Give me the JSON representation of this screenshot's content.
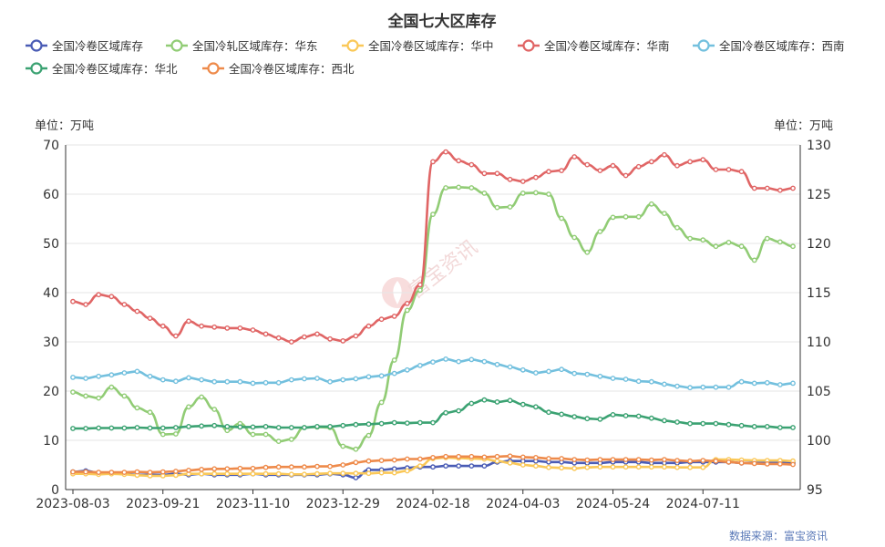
{
  "chart_data": {
    "type": "line",
    "title": "全国七大区库存",
    "y_left": {
      "unit_label": "单位：万吨",
      "range": [
        0,
        70
      ],
      "ticks": [
        "0",
        "10",
        "20",
        "30",
        "40",
        "50",
        "60",
        "70"
      ]
    },
    "y_right": {
      "unit_label": "单位：万吨",
      "range": [
        95,
        130
      ],
      "ticks": [
        "95",
        "100",
        "105",
        "110",
        "115",
        "120",
        "125",
        "130"
      ]
    },
    "x_tick_labels": [
      "2023-08-03",
      "2023-09-21",
      "2023-11-10",
      "2023-12-29",
      "2024-02-18",
      "2024-04-03",
      "2024-05-24",
      "2024-07-11"
    ],
    "x_tick_index": [
      0,
      7,
      14,
      21,
      28,
      35,
      42,
      49
    ],
    "point_count": 57,
    "grid": true,
    "legend_position": "top",
    "source_note": "数据来源：富宝资讯",
    "watermark_text": "富宝资讯",
    "series": [
      {
        "name": "全国冷卷区域库存",
        "axis": "right",
        "color": "#4a5cb5",
        "values": [
          96.8,
          96.9,
          96.7,
          96.7,
          96.6,
          96.5,
          96.5,
          96.5,
          96.6,
          96.5,
          96.6,
          96.5,
          96.5,
          96.5,
          96.6,
          96.5,
          96.5,
          96.5,
          96.5,
          96.5,
          96.6,
          96.5,
          96.2,
          97.0,
          97.0,
          97.1,
          97.2,
          97.3,
          97.3,
          97.4,
          97.4,
          97.4,
          97.4,
          97.8,
          97.9,
          97.9,
          97.9,
          97.8,
          97.8,
          97.7,
          97.7,
          97.7,
          97.8,
          97.8,
          97.8,
          97.7,
          97.7,
          97.7,
          97.8,
          97.8,
          97.8,
          97.8,
          97.7,
          97.7,
          97.7,
          97.7,
          97.7
        ]
      },
      {
        "name": "全国冷轧区域库存：华东",
        "axis": "left",
        "color": "#91cc75",
        "values": [
          19.8,
          19.0,
          18.6,
          20.8,
          19.0,
          16.6,
          15.7,
          11.2,
          11.3,
          16.8,
          18.8,
          16.3,
          12.0,
          13.4,
          11.2,
          11.2,
          9.8,
          10.2,
          12.6,
          12.7,
          12.6,
          8.8,
          8.2,
          11.0,
          17.7,
          26.3,
          36.4,
          40.5,
          55.9,
          61.3,
          61.4,
          61.3,
          60.2,
          57.3,
          57.4,
          60.2,
          60.3,
          60.0,
          55.1,
          51.2,
          48.2,
          52.4,
          55.3,
          55.4,
          55.4,
          58.0,
          56.1,
          53.2,
          51.0,
          50.7,
          49.4,
          50.2,
          49.4,
          46.6,
          51.0,
          50.3,
          49.4
        ]
      },
      {
        "name": "全国冷卷区域库存：华中",
        "axis": "left",
        "color": "#fac858",
        "values": [
          3.2,
          3.2,
          3.1,
          3.2,
          3.1,
          2.9,
          2.8,
          2.8,
          2.9,
          3.2,
          3.2,
          3.2,
          3.2,
          3.2,
          3.2,
          3.2,
          3.2,
          3.1,
          3.1,
          3.2,
          3.3,
          3.3,
          3.3,
          3.3,
          3.4,
          3.4,
          3.8,
          4.8,
          6.3,
          6.5,
          6.4,
          6.3,
          6.2,
          5.8,
          5.4,
          5.0,
          4.8,
          4.5,
          4.4,
          4.3,
          4.5,
          4.6,
          4.6,
          4.6,
          4.6,
          4.6,
          4.6,
          4.5,
          4.5,
          4.5,
          6.1,
          6.1,
          6.0,
          5.9,
          5.9,
          5.9,
          5.8
        ]
      },
      {
        "name": "全国冷卷区域库存：华南",
        "axis": "right",
        "color": "#e06565",
        "values": [
          114.1,
          113.8,
          114.8,
          114.6,
          113.8,
          113.1,
          112.4,
          111.6,
          110.6,
          112.1,
          111.6,
          111.5,
          111.4,
          111.4,
          111.2,
          110.8,
          110.4,
          110.0,
          110.5,
          110.8,
          110.3,
          110.1,
          110.6,
          111.6,
          112.3,
          112.6,
          113.9,
          115.8,
          128.3,
          129.3,
          128.4,
          128.0,
          127.1,
          127.1,
          126.5,
          126.3,
          126.7,
          127.3,
          127.4,
          128.8,
          128.0,
          127.4,
          127.9,
          126.9,
          127.8,
          128.3,
          129.0,
          127.9,
          128.3,
          128.5,
          127.5,
          127.5,
          127.3,
          125.6,
          125.6,
          125.4,
          125.6
        ]
      },
      {
        "name": "全国冷卷区域库存：西南",
        "axis": "left",
        "color": "#73c0de",
        "values": [
          22.8,
          22.6,
          23.0,
          23.3,
          23.7,
          24.0,
          23.0,
          22.3,
          22.0,
          22.7,
          22.3,
          21.9,
          21.9,
          21.9,
          21.6,
          21.7,
          21.7,
          22.3,
          22.5,
          22.6,
          21.9,
          22.3,
          22.5,
          22.9,
          23.1,
          23.6,
          24.3,
          25.2,
          25.9,
          26.5,
          26.0,
          26.4,
          26.0,
          25.4,
          24.9,
          24.3,
          23.7,
          24.0,
          24.4,
          23.6,
          23.4,
          23.0,
          22.6,
          22.4,
          22.0,
          21.9,
          21.4,
          21.0,
          20.7,
          20.8,
          20.8,
          20.8,
          21.9,
          21.6,
          21.7,
          21.3,
          21.6
        ]
      },
      {
        "name": "全国冷卷区域库存：华北",
        "axis": "left",
        "color": "#3ba272",
        "values": [
          12.4,
          12.4,
          12.5,
          12.5,
          12.5,
          12.6,
          12.5,
          12.5,
          12.6,
          12.8,
          12.9,
          13.0,
          12.8,
          12.7,
          12.7,
          12.8,
          12.6,
          12.6,
          12.6,
          12.8,
          12.8,
          13.0,
          13.2,
          13.3,
          13.4,
          13.6,
          13.5,
          13.6,
          13.6,
          15.6,
          16.0,
          17.5,
          18.2,
          17.8,
          18.1,
          17.3,
          16.8,
          15.7,
          15.3,
          14.8,
          14.4,
          14.3,
          15.2,
          15.0,
          14.9,
          14.5,
          14.0,
          13.7,
          13.4,
          13.4,
          13.4,
          13.2,
          13.0,
          12.8,
          12.8,
          12.6,
          12.6
        ]
      },
      {
        "name": "全国冷卷区域库存：西北",
        "axis": "left",
        "color": "#ee8a4a",
        "values": [
          3.6,
          3.6,
          3.5,
          3.5,
          3.5,
          3.6,
          3.5,
          3.6,
          3.7,
          3.9,
          4.1,
          4.2,
          4.2,
          4.3,
          4.3,
          4.5,
          4.6,
          4.6,
          4.6,
          4.7,
          4.7,
          5.0,
          5.5,
          5.8,
          5.9,
          6.0,
          6.2,
          6.2,
          6.5,
          6.7,
          6.7,
          6.7,
          6.6,
          6.7,
          6.8,
          6.6,
          6.5,
          6.3,
          6.3,
          6.1,
          6.0,
          6.1,
          6.1,
          6.1,
          6.1,
          6.0,
          6.1,
          5.9,
          5.8,
          5.9,
          5.8,
          5.6,
          5.4,
          5.3,
          5.2,
          5.2,
          5.1
        ]
      }
    ]
  }
}
